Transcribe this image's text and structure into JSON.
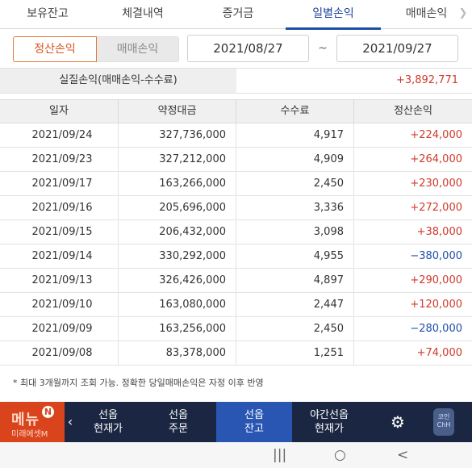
{
  "tabs": [
    {
      "label": "보유잔고"
    },
    {
      "label": "체결내역"
    },
    {
      "label": "증거금"
    },
    {
      "label": "일별손익"
    },
    {
      "label": "매매손익"
    }
  ],
  "tab_scroll_icon": "chevron-right-icon",
  "filter": {
    "segments": [
      "정산손익",
      "매매손익"
    ],
    "active_segment": "정산손익",
    "date_from": "2021/08/27",
    "date_sep": "~",
    "date_to": "2021/09/27"
  },
  "summary": {
    "label": "실질손익(매매손익-수수료)",
    "value": "+3,892,771"
  },
  "table": {
    "headers": [
      "일자",
      "약정대금",
      "수수료",
      "정산손익"
    ],
    "rows": [
      {
        "date": "2021/09/24",
        "amount": "327,736,000",
        "fee": "4,917",
        "pnl": "+224,000",
        "sign": "pos"
      },
      {
        "date": "2021/09/23",
        "amount": "327,212,000",
        "fee": "4,909",
        "pnl": "+264,000",
        "sign": "pos"
      },
      {
        "date": "2021/09/17",
        "amount": "163,266,000",
        "fee": "2,450",
        "pnl": "+230,000",
        "sign": "pos"
      },
      {
        "date": "2021/09/16",
        "amount": "205,696,000",
        "fee": "3,336",
        "pnl": "+272,000",
        "sign": "pos"
      },
      {
        "date": "2021/09/15",
        "amount": "206,432,000",
        "fee": "3,098",
        "pnl": "+38,000",
        "sign": "pos"
      },
      {
        "date": "2021/09/14",
        "amount": "330,292,000",
        "fee": "4,955",
        "pnl": "−380,000",
        "sign": "neg"
      },
      {
        "date": "2021/09/13",
        "amount": "326,426,000",
        "fee": "4,897",
        "pnl": "+290,000",
        "sign": "pos"
      },
      {
        "date": "2021/09/10",
        "amount": "163,080,000",
        "fee": "2,447",
        "pnl": "+120,000",
        "sign": "pos"
      },
      {
        "date": "2021/09/09",
        "amount": "163,256,000",
        "fee": "2,450",
        "pnl": "−280,000",
        "sign": "neg"
      },
      {
        "date": "2021/09/08",
        "amount": "83,378,000",
        "fee": "1,251",
        "pnl": "+74,000",
        "sign": "pos"
      }
    ]
  },
  "note": "* 최대 3개월까지 조회 가능. 정확한 당일매매손익은 자정 이후 반영",
  "bottom_bar": {
    "menu_label": "메뉴",
    "menu_badge": "N",
    "menu_sub": "미래에셋M",
    "buttons": [
      {
        "line1": "선옵",
        "line2": "현재가"
      },
      {
        "line1": "선옵",
        "line2": "주문"
      },
      {
        "line1": "선옵",
        "line2": "잔고"
      },
      {
        "line1": "야간선옵",
        "line2": "현재가"
      }
    ],
    "active_button": "선옵 잔고",
    "settings_icon": "gear-icon",
    "coin_label": "코인 ChH"
  },
  "system_nav": {
    "recent": "|||",
    "home": "○",
    "back": "<"
  },
  "colors": {
    "accent": "#1d4fa8",
    "positive": "#d03a2b",
    "negative": "#1d4fa8",
    "bottom_bar": "#1b2742",
    "menu_logo": "#d9441d"
  }
}
